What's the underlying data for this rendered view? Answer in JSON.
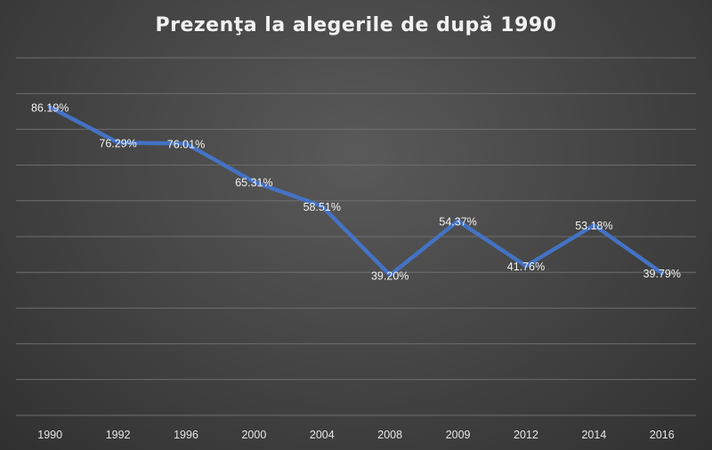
{
  "chart_data": {
    "type": "line",
    "title": "Prezenţa la alegerile de după 1990",
    "categories": [
      "1990",
      "1992",
      "1996",
      "2000",
      "2004",
      "2008",
      "2009",
      "2012",
      "2014",
      "2016"
    ],
    "series": [
      {
        "values": [
          86.19,
          76.29,
          76.01,
          65.31,
          58.51,
          39.2,
          54.37,
          41.76,
          53.18,
          39.79
        ],
        "labels": [
          "86.19%",
          "76.29%",
          "76.01%",
          "65.31%",
          "58.51%",
          "39.20%",
          "54.37%",
          "41.76%",
          "53.18%",
          "39.79%"
        ]
      }
    ],
    "ylim": [
      0,
      100
    ],
    "ytick_step": 10,
    "grid": true,
    "legend": "none",
    "colors": {
      "line": "#4472C4",
      "grid": "#6e6e6e",
      "text": "#f2f2f2"
    }
  }
}
